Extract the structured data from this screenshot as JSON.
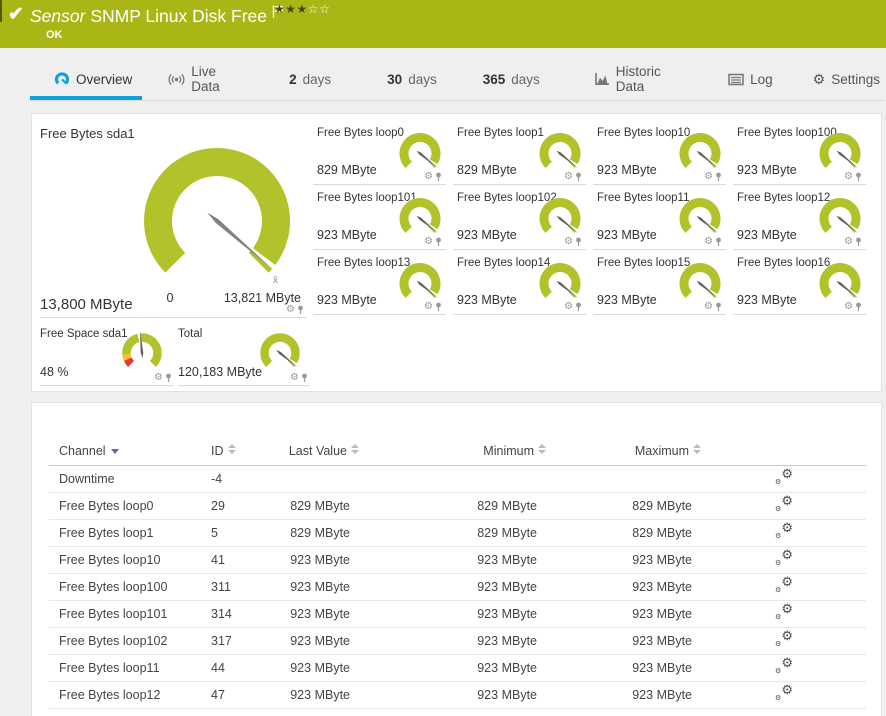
{
  "header": {
    "kind": "Sensor",
    "title": "SNMP Linux Disk Free",
    "status": "OK",
    "rating_filled": 3,
    "rating_total": 5,
    "bar_color": "#aab616"
  },
  "tabs": [
    {
      "label": "Overview",
      "icon": "gauge-icon",
      "active": true
    },
    {
      "label": "Live Data",
      "icon": "broadcast-icon"
    },
    {
      "num": "2",
      "label": "days"
    },
    {
      "num": "30",
      "label": "days"
    },
    {
      "num": "365",
      "label": "days"
    },
    {
      "label": "Historic Data",
      "icon": "chart-icon"
    },
    {
      "label": "Log",
      "icon": "log-icon"
    },
    {
      "label": "Settings",
      "icon": "gear-icon"
    }
  ],
  "chart_data": {
    "type": "gauge-set",
    "arc_color": "#b2c22a",
    "limit_red": "#e53935",
    "limit_yellow": "#fdbe2e",
    "needle_color": "#828282",
    "needle_color_small": "#606060",
    "main": {
      "title": "Free Bytes sda1",
      "value": "13,800 MByte",
      "min_label": "0",
      "max_label": "13,821 MByte",
      "percent": 0.998,
      "avg_marker": "x̄"
    },
    "small": [
      {
        "title": "Free Bytes loop0",
        "value": "829 MByte",
        "percent": 1
      },
      {
        "title": "Free Bytes loop1",
        "value": "829 MByte",
        "percent": 1
      },
      {
        "title": "Free Bytes loop10",
        "value": "923 MByte",
        "percent": 1
      },
      {
        "title": "Free Bytes loop100",
        "value": "923 MByte",
        "percent": 1
      },
      {
        "title": "Free Bytes loop101",
        "value": "923 MByte",
        "percent": 1
      },
      {
        "title": "Free Bytes loop102",
        "value": "923 MByte",
        "percent": 1
      },
      {
        "title": "Free Bytes loop11",
        "value": "923 MByte",
        "percent": 1
      },
      {
        "title": "Free Bytes loop12",
        "value": "923 MByte",
        "percent": 1
      },
      {
        "title": "Free Bytes loop13",
        "value": "923 MByte",
        "percent": 1
      },
      {
        "title": "Free Bytes loop14",
        "value": "923 MByte",
        "percent": 1
      },
      {
        "title": "Free Bytes loop15",
        "value": "923 MByte",
        "percent": 1
      },
      {
        "title": "Free Bytes loop16",
        "value": "923 MByte",
        "percent": 1
      }
    ],
    "bottom": [
      {
        "title": "Free Space sda1",
        "value": "48 %",
        "percent": 0.48,
        "limits": true
      },
      {
        "title": "Total",
        "value": "120,183 MByte",
        "percent": 1
      }
    ]
  },
  "table": {
    "columns": [
      {
        "label": "Channel",
        "sort": "desc"
      },
      {
        "label": "ID",
        "sort": "both"
      },
      {
        "label": "Last Value",
        "sort": "both"
      },
      {
        "label": "Minimum",
        "sort": "both"
      },
      {
        "label": "Maximum",
        "sort": "both"
      }
    ],
    "rows": [
      {
        "channel": "Downtime",
        "id": "-4",
        "last": "",
        "min": "",
        "max": ""
      },
      {
        "channel": "Free Bytes loop0",
        "id": "29",
        "last": "829 MByte",
        "min": "829 MByte",
        "max": "829 MByte"
      },
      {
        "channel": "Free Bytes loop1",
        "id": "5",
        "last": "829 MByte",
        "min": "829 MByte",
        "max": "829 MByte"
      },
      {
        "channel": "Free Bytes loop10",
        "id": "41",
        "last": "923 MByte",
        "min": "923 MByte",
        "max": "923 MByte"
      },
      {
        "channel": "Free Bytes loop100",
        "id": "311",
        "last": "923 MByte",
        "min": "923 MByte",
        "max": "923 MByte"
      },
      {
        "channel": "Free Bytes loop101",
        "id": "314",
        "last": "923 MByte",
        "min": "923 MByte",
        "max": "923 MByte"
      },
      {
        "channel": "Free Bytes loop102",
        "id": "317",
        "last": "923 MByte",
        "min": "923 MByte",
        "max": "923 MByte"
      },
      {
        "channel": "Free Bytes loop11",
        "id": "44",
        "last": "923 MByte",
        "min": "923 MByte",
        "max": "923 MByte"
      },
      {
        "channel": "Free Bytes loop12",
        "id": "47",
        "last": "923 MByte",
        "min": "923 MByte",
        "max": "923 MByte"
      }
    ]
  }
}
